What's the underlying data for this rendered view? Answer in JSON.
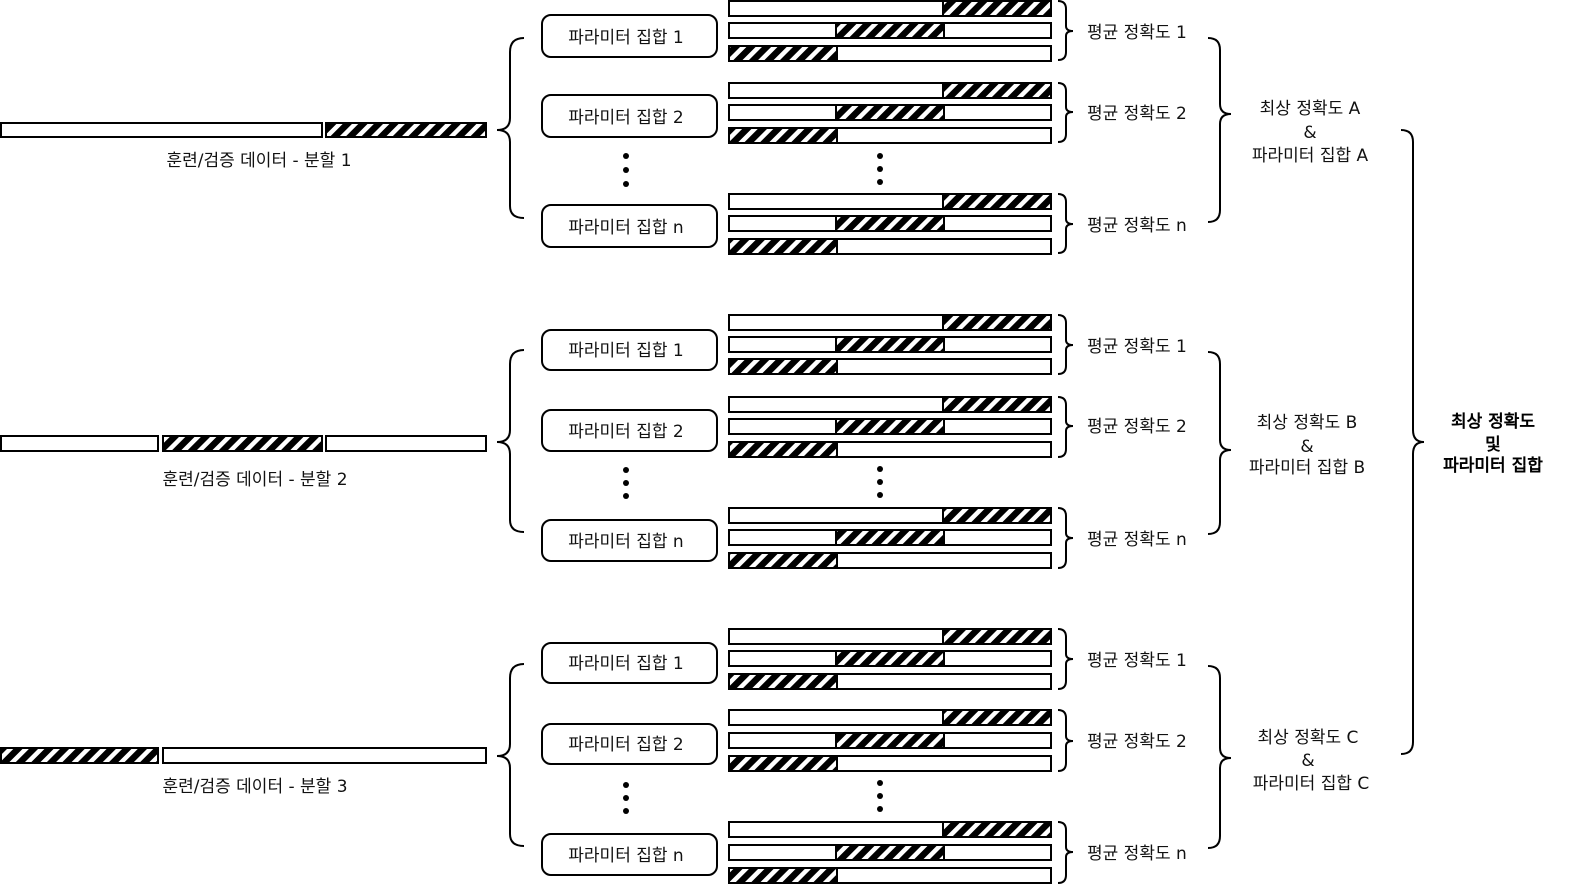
{
  "groups": [
    {
      "split_label": "훈련/검증 데이터 - 분할 1",
      "param_sets": [
        "파라미터 집합 1",
        "파라미터 집합 2",
        "파라미터 집합 n"
      ],
      "mean_acc": [
        "평균 정확도 1",
        "평균 정확도 2",
        "평균 정확도 n"
      ],
      "best": [
        "최상 정확도 A",
        "&",
        "파라미터 집합 A"
      ]
    },
    {
      "split_label": "훈련/검증 데이터 - 분할 2",
      "param_sets": [
        "파라미터 집합 1",
        "파라미터 집합 2",
        "파라미터 집합 n"
      ],
      "mean_acc": [
        "평균 정확도 1",
        "평균 정확도 2",
        "평균 정확도 n"
      ],
      "best": [
        "최상 정확도 B",
        "&",
        "파라미터 집합 B"
      ]
    },
    {
      "split_label": "훈련/검증 데이터 - 분할 3",
      "param_sets": [
        "파라미터 집합 1",
        "파라미터 집합 2",
        "파라미터 집합 n"
      ],
      "mean_acc": [
        "평균 정확도 1",
        "평균 정확도 2",
        "평균 정확도 n"
      ],
      "best": [
        "최상 정확도 C",
        "&",
        "파라미터 집합 C"
      ]
    }
  ],
  "final": [
    "최상 정확도",
    "및",
    "파라미터 집합"
  ]
}
